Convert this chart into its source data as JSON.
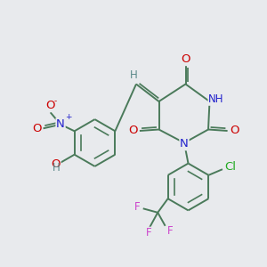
{
  "bg_color": "#e8eaed",
  "bond_color": "#4a7a5a",
  "bond_width": 1.4,
  "atom_colors": {
    "O": "#cc0000",
    "N": "#2222cc",
    "H": "#5a8a8a",
    "Cl": "#22aa22",
    "F": "#cc44cc",
    "C": "#4a7a5a"
  },
  "font_size": 8.5,
  "fig_size": [
    3.0,
    3.0
  ],
  "dpi": 100
}
